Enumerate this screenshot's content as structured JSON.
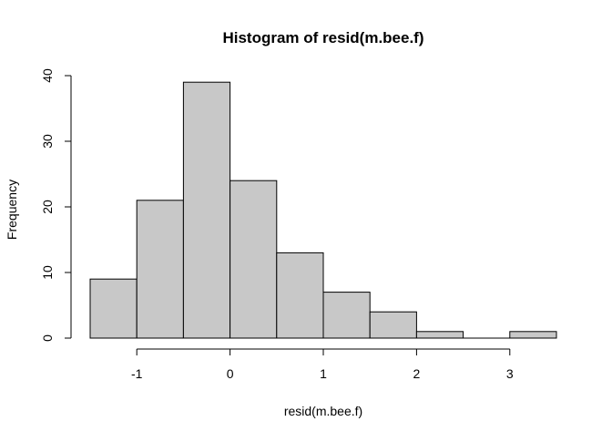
{
  "chart_data": {
    "type": "bar",
    "title": "Histogram of resid(m.bee.f)",
    "xlabel": "resid(m.bee.f)",
    "ylabel": "Frequency",
    "bins": [
      {
        "start": -1.5,
        "end": -1.0,
        "count": 9
      },
      {
        "start": -1.0,
        "end": -0.5,
        "count": 21
      },
      {
        "start": -0.5,
        "end": 0.0,
        "count": 39
      },
      {
        "start": 0.0,
        "end": 0.5,
        "count": 24
      },
      {
        "start": 0.5,
        "end": 1.0,
        "count": 13
      },
      {
        "start": 1.0,
        "end": 1.5,
        "count": 7
      },
      {
        "start": 1.5,
        "end": 2.0,
        "count": 4
      },
      {
        "start": 2.0,
        "end": 2.5,
        "count": 1
      },
      {
        "start": 2.5,
        "end": 3.0,
        "count": 0
      },
      {
        "start": 3.0,
        "end": 3.5,
        "count": 1
      }
    ],
    "xlim": [
      -1.5,
      3.5
    ],
    "ylim": [
      0,
      40
    ],
    "x_ticks": [
      -1,
      0,
      1,
      2,
      3
    ],
    "x_tick_labels": [
      "-1",
      "0",
      "1",
      "2",
      "3"
    ],
    "y_ticks": [
      0,
      10,
      20,
      30,
      40
    ],
    "y_tick_labels": [
      "0",
      "10",
      "20",
      "30",
      "40"
    ],
    "grid": false,
    "bar_color": "#c8c8c8",
    "edge_color": "#000000"
  }
}
